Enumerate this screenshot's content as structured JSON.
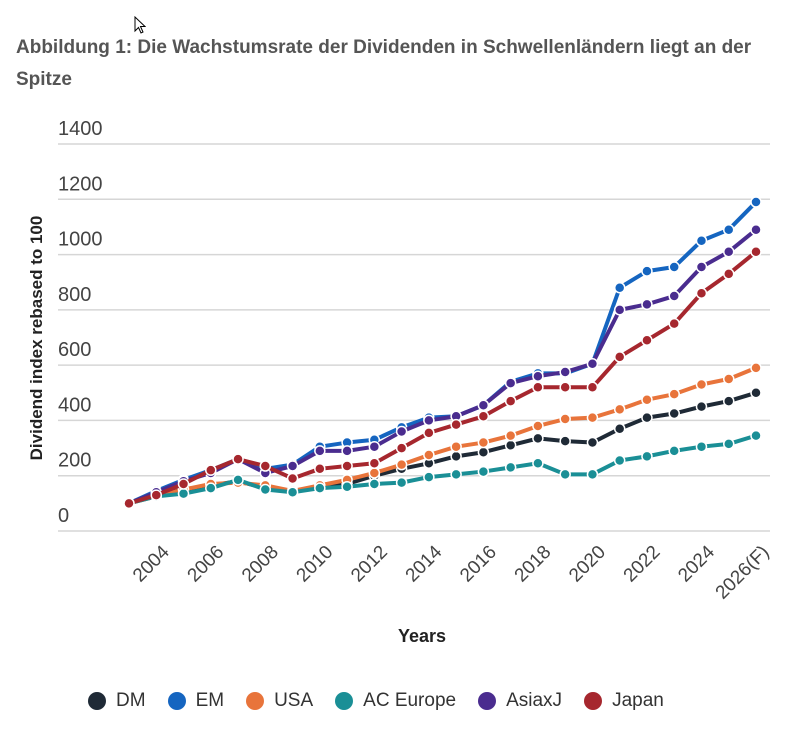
{
  "title": "Abbildung 1: Die Wachstumsrate der Dividenden in Schwellenländern liegt an der Spitze",
  "chart_data": {
    "type": "line",
    "title": "Abbildung 1: Die Wachstumsrate der Dividenden in Schwellenländern liegt an der Spitze",
    "xlabel": "Years",
    "ylabel": "Dividend index rebased to 100",
    "ylim": [
      0,
      1400
    ],
    "yticks": [
      0,
      200,
      400,
      600,
      800,
      1000,
      1200,
      1400
    ],
    "x": [
      2003,
      2004,
      2005,
      2006,
      2007,
      2008,
      2009,
      2010,
      2011,
      2012,
      2013,
      2014,
      2015,
      2016,
      2017,
      2018,
      2019,
      2020,
      2021,
      2022,
      2023,
      2024,
      2025,
      2026
    ],
    "xtick_labels": [
      "2004",
      "2006",
      "2008",
      "2010",
      "2012",
      "2014",
      "2016",
      "2018",
      "2020",
      "2022",
      "2024",
      "2026(F)"
    ],
    "xtick_years": [
      2004,
      2006,
      2008,
      2010,
      2012,
      2014,
      2016,
      2018,
      2020,
      2022,
      2024,
      2026
    ],
    "grid": true,
    "legend_position": "bottom",
    "series": [
      {
        "name": "DM",
        "color": "#1f2a36",
        "values": [
          100,
          130,
          150,
          165,
          180,
          155,
          145,
          160,
          170,
          200,
          225,
          245,
          270,
          285,
          310,
          335,
          325,
          320,
          370,
          410,
          425,
          450,
          470,
          500
        ]
      },
      {
        "name": "EM",
        "color": "#1565c0",
        "values": [
          100,
          145,
          185,
          220,
          260,
          225,
          240,
          305,
          320,
          330,
          375,
          410,
          415,
          455,
          540,
          570,
          570,
          605,
          880,
          940,
          955,
          1050,
          1090,
          1190
        ]
      },
      {
        "name": "USA",
        "color": "#e8743b",
        "values": [
          100,
          125,
          150,
          170,
          175,
          165,
          145,
          165,
          185,
          210,
          240,
          275,
          305,
          320,
          345,
          380,
          405,
          410,
          440,
          475,
          495,
          530,
          550,
          590
        ]
      },
      {
        "name": "AC Europe",
        "color": "#1a8f96",
        "values": [
          100,
          125,
          135,
          155,
          185,
          150,
          140,
          155,
          160,
          170,
          175,
          195,
          205,
          215,
          230,
          245,
          205,
          205,
          255,
          270,
          290,
          305,
          315,
          345
        ]
      },
      {
        "name": "AsiaxJ",
        "color": "#4a2c8f",
        "values": [
          100,
          140,
          180,
          210,
          260,
          210,
          235,
          290,
          290,
          305,
          360,
          400,
          415,
          455,
          535,
          560,
          575,
          605,
          800,
          820,
          850,
          955,
          1010,
          1090
        ]
      },
      {
        "name": "Japan",
        "color": "#a6272e",
        "values": [
          100,
          130,
          170,
          220,
          260,
          235,
          190,
          225,
          235,
          245,
          300,
          355,
          385,
          415,
          470,
          520,
          520,
          520,
          630,
          690,
          750,
          860,
          930,
          1010
        ]
      }
    ]
  }
}
